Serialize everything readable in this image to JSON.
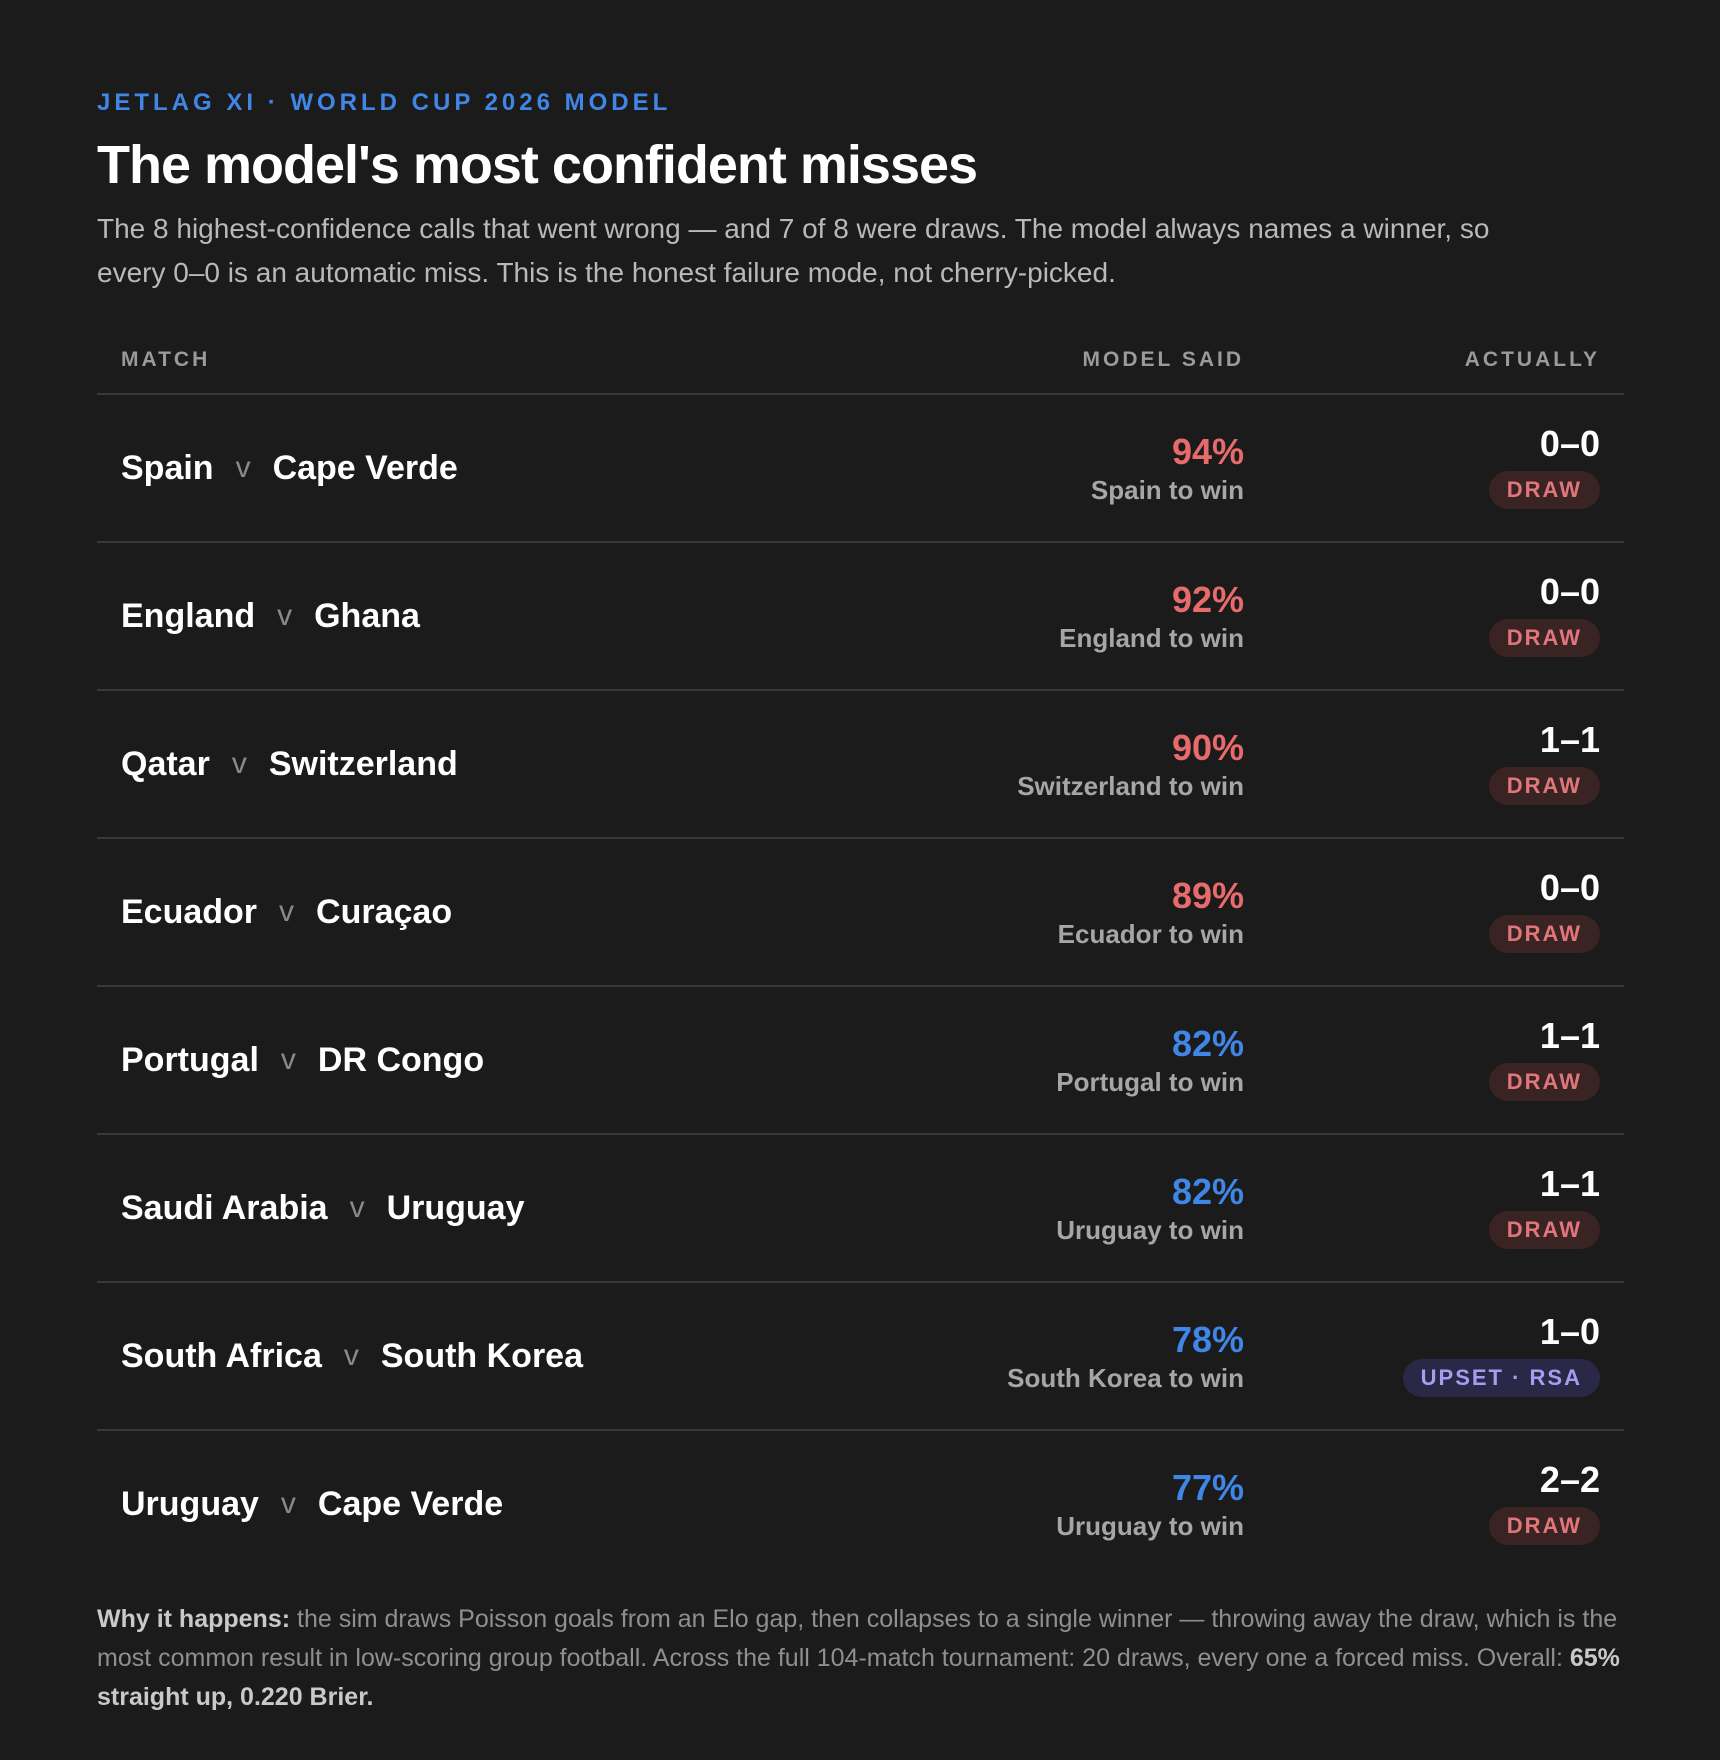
{
  "header": {
    "eyebrow": "JETLAG XI · WORLD CUP 2026 MODEL",
    "title": "The model's most confident misses",
    "subtitle": "The 8 highest-confidence calls that went wrong — and 7 of 8 were draws. The model always names a winner, so every 0–0 is an automatic miss. This is the honest failure mode, not cherry-picked."
  },
  "table": {
    "columns": {
      "match": "MATCH",
      "model": "MODEL SAID",
      "actual": "ACTUALLY"
    },
    "separator": "v",
    "rows": [
      {
        "home": "Spain",
        "away": "Cape Verde",
        "pct": "94%",
        "pick": "Spain to win",
        "score": "0–0",
        "badge": "DRAW",
        "badge_type": "draw",
        "pct_color": "#e86b6b"
      },
      {
        "home": "England",
        "away": "Ghana",
        "pct": "92%",
        "pick": "England to win",
        "score": "0–0",
        "badge": "DRAW",
        "badge_type": "draw",
        "pct_color": "#e86b6b"
      },
      {
        "home": "Qatar",
        "away": "Switzerland",
        "pct": "90%",
        "pick": "Switzerland to win",
        "score": "1–1",
        "badge": "DRAW",
        "badge_type": "draw",
        "pct_color": "#e86b6b"
      },
      {
        "home": "Ecuador",
        "away": "Curaçao",
        "pct": "89%",
        "pick": "Ecuador to win",
        "score": "0–0",
        "badge": "DRAW",
        "badge_type": "draw",
        "pct_color": "#e86b6b"
      },
      {
        "home": "Portugal",
        "away": "DR Congo",
        "pct": "82%",
        "pick": "Portugal to win",
        "score": "1–1",
        "badge": "DRAW",
        "badge_type": "draw",
        "pct_color": "#3f86e6"
      },
      {
        "home": "Saudi Arabia",
        "away": "Uruguay",
        "pct": "82%",
        "pick": "Uruguay to win",
        "score": "1–1",
        "badge": "DRAW",
        "badge_type": "draw",
        "pct_color": "#3f86e6"
      },
      {
        "home": "South Africa",
        "away": "South Korea",
        "pct": "78%",
        "pick": "South Korea to win",
        "score": "1–0",
        "badge": "UPSET · RSA",
        "badge_type": "upset",
        "pct_color": "#3f86e6"
      },
      {
        "home": "Uruguay",
        "away": "Cape Verde",
        "pct": "77%",
        "pick": "Uruguay to win",
        "score": "2–2",
        "badge": "DRAW",
        "badge_type": "draw",
        "pct_color": "#3f86e6"
      }
    ]
  },
  "footer": {
    "lead": "Why it happens:",
    "body": " the sim draws Poisson goals from an Elo gap, then collapses to a single winner — throwing away the draw, which is the most common result in low-scoring group football. Across the full 104-match tournament: 20 draws, every one a forced miss. Overall: ",
    "summary": "65% straight up, 0.220 Brier."
  }
}
